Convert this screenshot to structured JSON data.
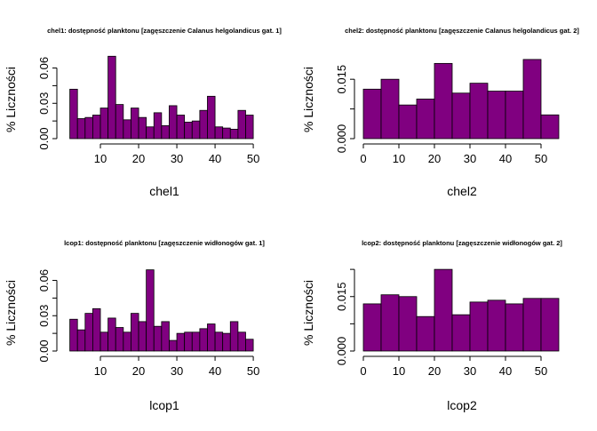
{
  "chart_data": [
    {
      "type": "bar",
      "title": "chel1: dostępność planktonu [zagęszczenie Calanus helgolandicus gat. 1]",
      "xlabel": "chel1",
      "ylabel": "% Liczności",
      "bin_edges": [
        2,
        4,
        6,
        8,
        10,
        12,
        14,
        16,
        18,
        20,
        22,
        24,
        26,
        28,
        30,
        32,
        34,
        36,
        38,
        40,
        42,
        44,
        46,
        48,
        50
      ],
      "values": [
        0.042,
        0.017,
        0.018,
        0.02,
        0.026,
        0.07,
        0.029,
        0.016,
        0.026,
        0.018,
        0.01,
        0.022,
        0.011,
        0.028,
        0.02,
        0.014,
        0.015,
        0.024,
        0.036,
        0.01,
        0.009,
        0.008,
        0.024,
        0.02
      ],
      "xticks": [
        10,
        20,
        30,
        40,
        50
      ],
      "yticks": [
        "0.00",
        "0.03",
        "0.06"
      ],
      "xlim": [
        0,
        53
      ],
      "ylim": [
        0,
        0.074
      ],
      "grid": false
    },
    {
      "type": "bar",
      "title": "chel2: dostępność planktonu [zagęszczenie Calanus helgolandicus gat. 2]",
      "xlabel": "chel2",
      "ylabel": "% Liczności",
      "bin_edges": [
        0,
        5,
        10,
        15,
        20,
        25,
        30,
        35,
        40,
        45,
        50,
        55
      ],
      "values": [
        0.0125,
        0.015,
        0.0085,
        0.01,
        0.019,
        0.0115,
        0.014,
        0.012,
        0.012,
        0.02,
        0.006
      ],
      "xticks": [
        0,
        10,
        20,
        30,
        40,
        50
      ],
      "yticks": [
        "0.000",
        "0.015"
      ],
      "xlim": [
        -1,
        56
      ],
      "ylim": [
        0,
        0.022
      ],
      "grid": false
    },
    {
      "type": "bar",
      "title": "lcop1: dostępność planktonu [zagęszczenie widłonogów gat. 1]",
      "xlabel": "lcop1",
      "ylabel": "% Liczności",
      "bin_edges": [
        2,
        4,
        6,
        8,
        10,
        12,
        14,
        16,
        18,
        20,
        22,
        24,
        26,
        28,
        30,
        32,
        34,
        36,
        38,
        40,
        42,
        44,
        46,
        48,
        50
      ],
      "values": [
        0.027,
        0.018,
        0.032,
        0.036,
        0.016,
        0.028,
        0.02,
        0.016,
        0.032,
        0.025,
        0.069,
        0.021,
        0.025,
        0.009,
        0.015,
        0.016,
        0.016,
        0.019,
        0.023,
        0.016,
        0.015,
        0.025,
        0.016,
        0.01
      ],
      "xticks": [
        10,
        20,
        30,
        40,
        50
      ],
      "yticks": [
        "0.00",
        "0.03",
        "0.06"
      ],
      "xlim": [
        0,
        53
      ],
      "ylim": [
        0,
        0.074
      ],
      "grid": false
    },
    {
      "type": "bar",
      "title": "lcop2: dostępność planktonu [zagęszczenie widłonogów gat. 2]",
      "xlabel": "lcop2",
      "ylabel": "% Liczności",
      "bin_edges": [
        0,
        5,
        10,
        15,
        20,
        25,
        30,
        35,
        40,
        45,
        50,
        55
      ],
      "values": [
        0.013,
        0.0155,
        0.015,
        0.0095,
        0.0225,
        0.01,
        0.0135,
        0.014,
        0.013,
        0.0145,
        0.0145
      ],
      "xticks": [
        0,
        10,
        20,
        30,
        40,
        50
      ],
      "yticks": [
        "0.000",
        "0.015"
      ],
      "xlim": [
        -1,
        56
      ],
      "ylim": [
        0,
        0.024
      ],
      "grid": false
    }
  ],
  "colors": {
    "bar_fill": "#800080",
    "bar_stroke": "#000000"
  }
}
